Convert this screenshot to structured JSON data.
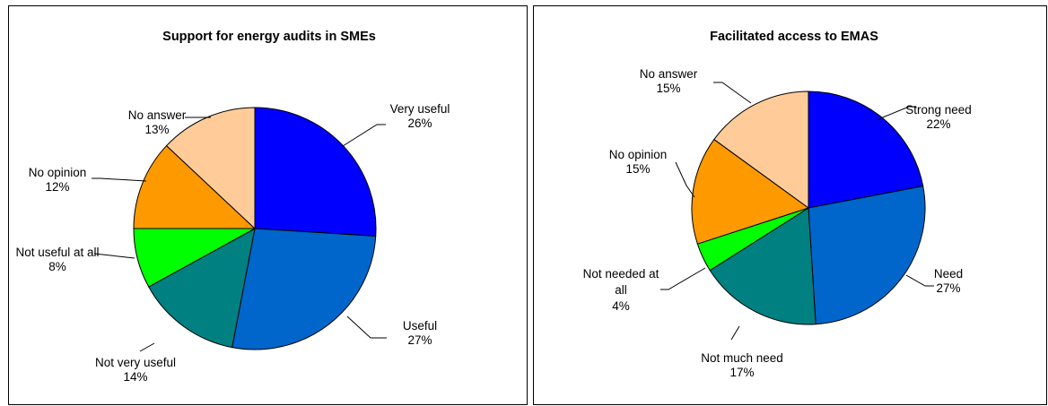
{
  "chart_data": [
    {
      "type": "pie",
      "title": "Support for energy audits in SMEs",
      "slices": [
        {
          "label": "Very useful",
          "value": 26,
          "pct": "26%",
          "color": "#0000ff"
        },
        {
          "label": "Useful",
          "value": 27,
          "pct": "27%",
          "color": "#0066cc"
        },
        {
          "label": "Not very useful",
          "value": 14,
          "pct": "14%",
          "color": "#008080"
        },
        {
          "label": "Not useful at all",
          "value": 8,
          "pct": "8%",
          "color": "#00ff00"
        },
        {
          "label": "No opinion",
          "value": 12,
          "pct": "12%",
          "color": "#ff9900"
        },
        {
          "label": "No answer",
          "value": 13,
          "pct": "13%",
          "color": "#ffcc99"
        }
      ]
    },
    {
      "type": "pie",
      "title": "Facilitated access to EMAS",
      "slices": [
        {
          "label": "Strong need",
          "value": 22,
          "pct": "22%",
          "color": "#0000ff"
        },
        {
          "label": "Need",
          "value": 27,
          "pct": "27%",
          "color": "#0066cc"
        },
        {
          "label": "Not much need",
          "value": 17,
          "pct": "17%",
          "color": "#008080"
        },
        {
          "label": "Not needed at all",
          "value": 4,
          "pct": "4%",
          "color": "#00ff00"
        },
        {
          "label": "No opinion",
          "value": 15,
          "pct": "15%",
          "color": "#ff9900"
        },
        {
          "label": "No answer",
          "value": 15,
          "pct": "15%",
          "color": "#ffcc99"
        }
      ]
    }
  ]
}
